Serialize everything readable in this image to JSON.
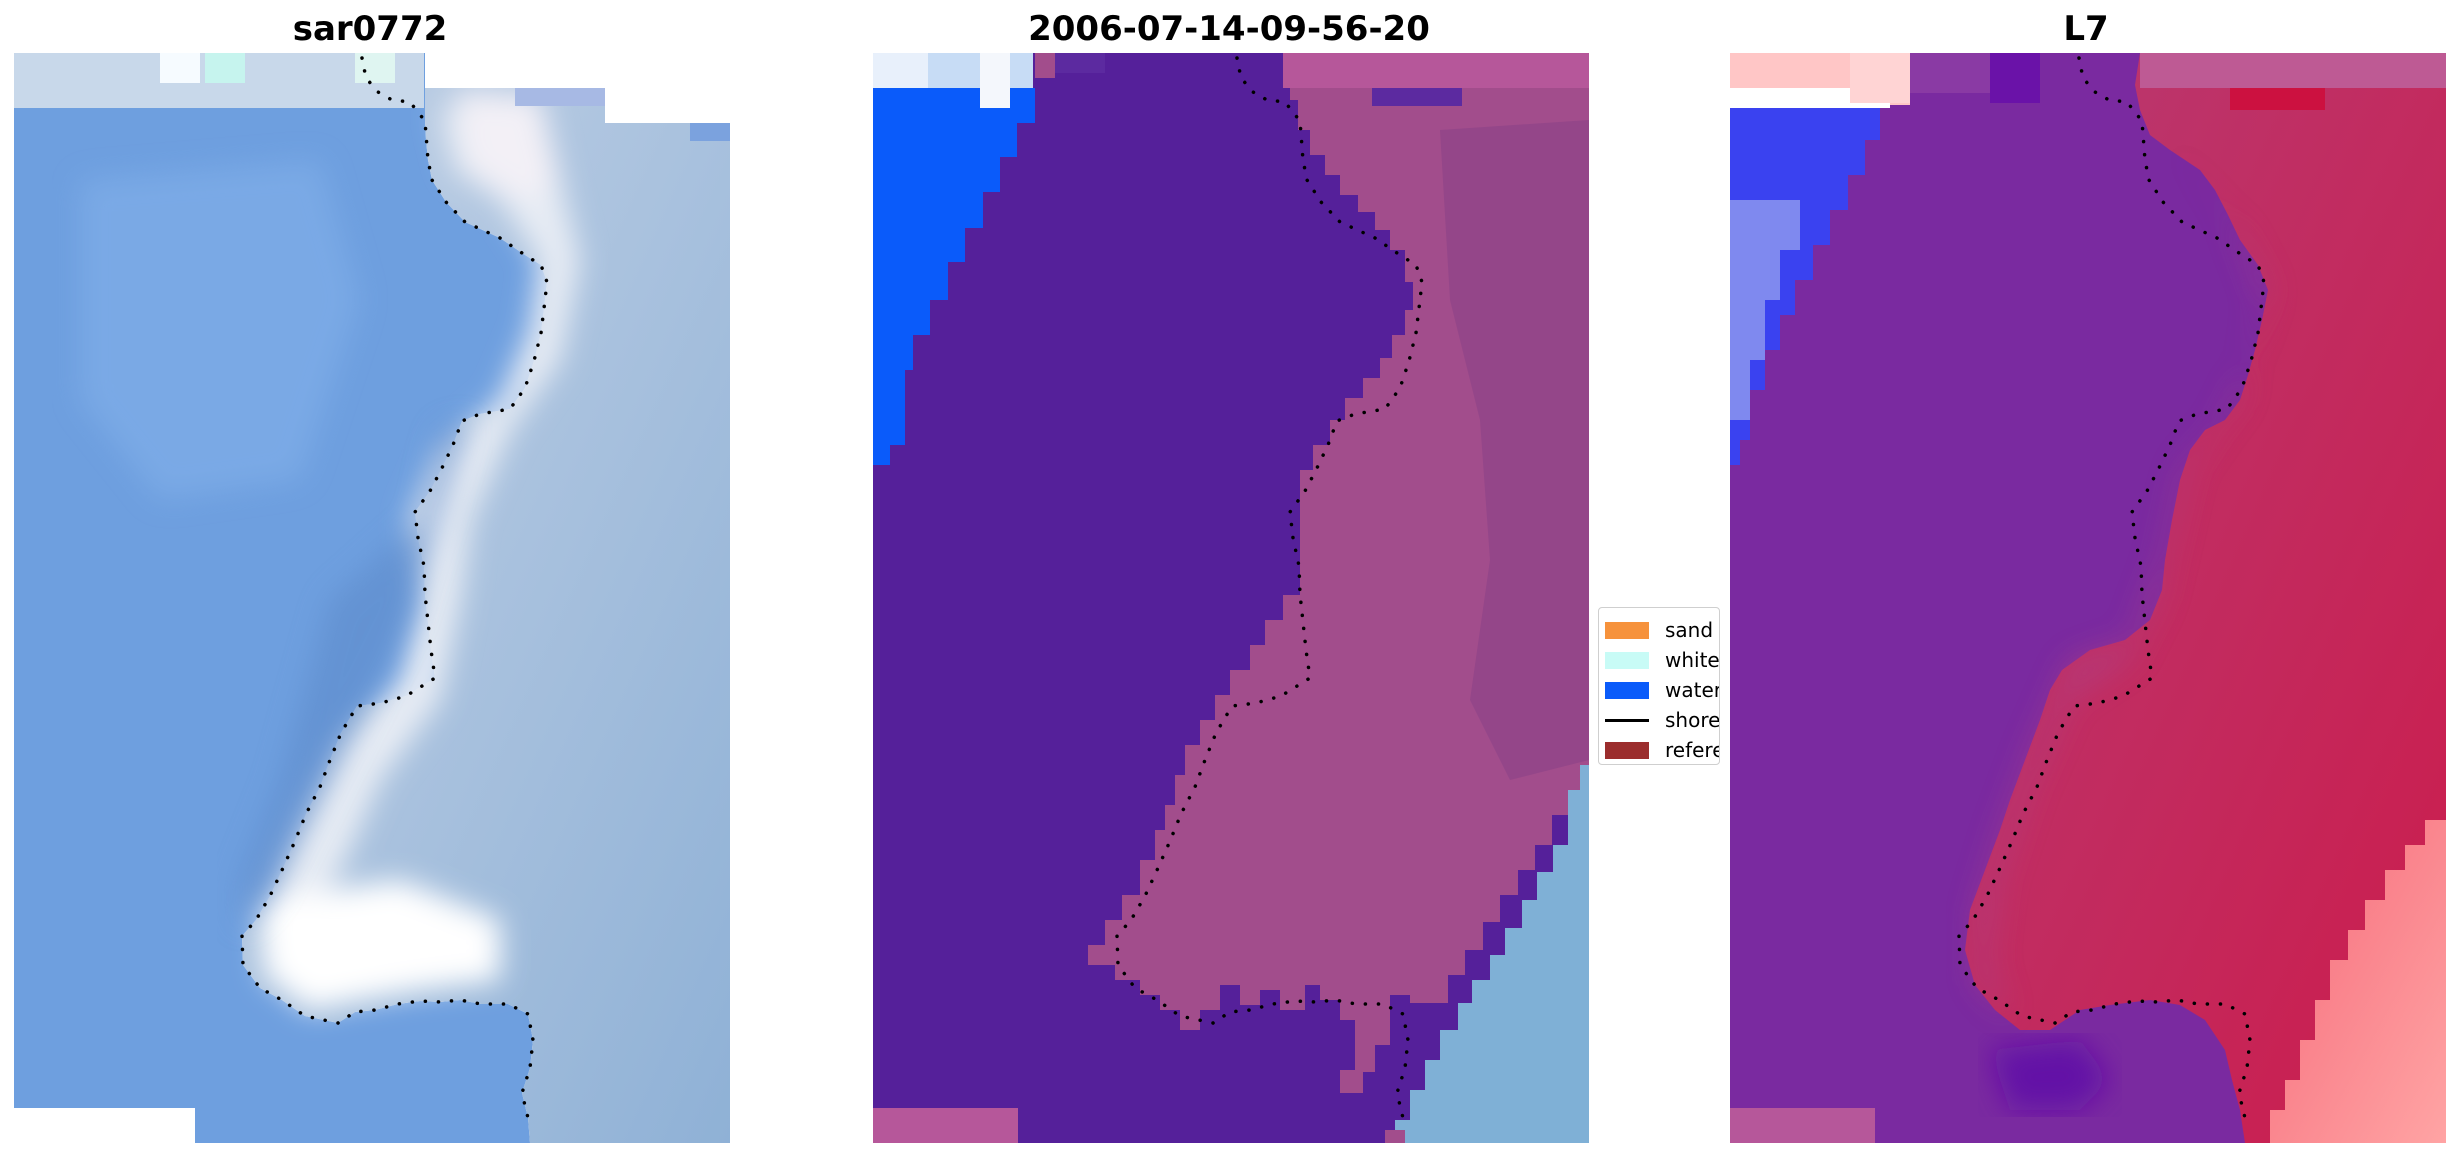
{
  "panels": [
    {
      "title": "sar0772"
    },
    {
      "title": "2006-07-14-09-56-20"
    },
    {
      "title": "L7"
    }
  ],
  "legend": {
    "items": [
      {
        "label": "sand",
        "kind": "patch",
        "color": "#f6923c"
      },
      {
        "label": "whitewater",
        "kind": "patch",
        "color": "#c8fbf6"
      },
      {
        "label": "water",
        "kind": "patch",
        "color": "#0a5bfa"
      },
      {
        "label": "shoreline",
        "kind": "line",
        "color": "#000000"
      },
      {
        "label": "reference shoreline",
        "kind": "patch",
        "color": "#9b2d2d"
      }
    ]
  },
  "colors": {
    "rgb_water": "#6e9fdf",
    "rgb_land": "#a9bfd6",
    "rgb_surf": "#eef1f6",
    "class_water": "#55209a",
    "class_land": "#a24d8c",
    "class_water_blue": "#0a5bfa",
    "class_sea_pale": "#7fb0d6",
    "index_water": "#7a2aa0",
    "index_land": "#c41e55",
    "index_low": "#ff8a8a",
    "index_blue": "#3a42f0"
  }
}
